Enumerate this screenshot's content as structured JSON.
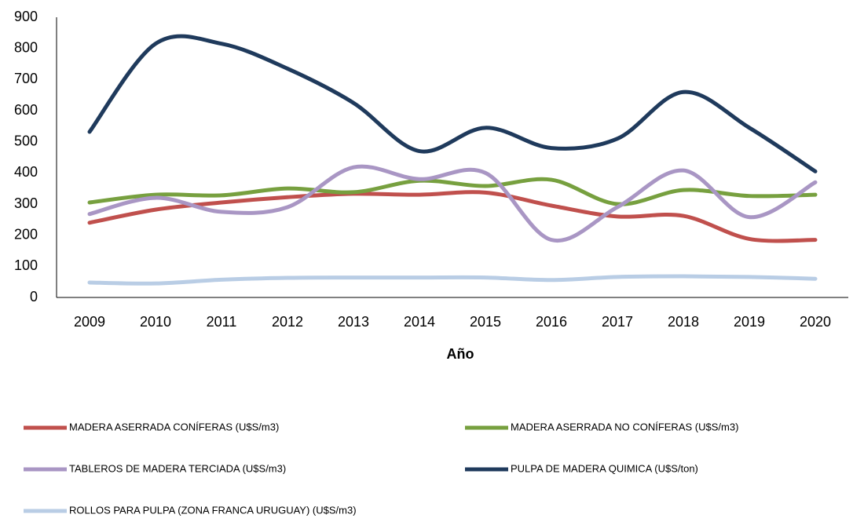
{
  "chart_data": {
    "type": "line",
    "x_label": "Año",
    "categories": [
      "2009",
      "2010",
      "2011",
      "2012",
      "2013",
      "2014",
      "2015",
      "2016",
      "2017",
      "2018",
      "2019",
      "2020"
    ],
    "series": [
      {
        "name": "MADERA ASERRADA CONÍFERAS (U$S/m3)",
        "color": "#c0504d",
        "values": [
          240,
          282,
          305,
          322,
          333,
          330,
          337,
          295,
          260,
          262,
          188,
          185
        ]
      },
      {
        "name": "MADERA ASERRADA NO CONÍFERAS (U$S/m3)",
        "color": "#77a03f",
        "values": [
          305,
          330,
          328,
          350,
          338,
          375,
          358,
          378,
          300,
          345,
          326,
          330
        ]
      },
      {
        "name": "TABLEROS DE MADERA TERCIADA (U$S/m3)",
        "color": "#a996c4",
        "values": [
          268,
          320,
          275,
          290,
          418,
          380,
          400,
          185,
          290,
          408,
          258,
          370
        ]
      },
      {
        "name": "PULPA DE MADERA QUIMICA (U$S/ton)",
        "color": "#1f3a5c",
        "values": [
          532,
          815,
          815,
          735,
          625,
          470,
          545,
          480,
          510,
          660,
          545,
          405
        ]
      },
      {
        "name": "ROLLOS PARA PULPA (ZONA FRANCA URUGUAY) (U$S/m3)",
        "color": "#b9cde5",
        "values": [
          48,
          45,
          57,
          63,
          64,
          64,
          64,
          56,
          66,
          68,
          66,
          60
        ]
      }
    ],
    "ylim": [
      0,
      900
    ],
    "yticks": [
      0,
      100,
      200,
      300,
      400,
      500,
      600,
      700,
      800,
      900
    ],
    "grid": false,
    "smooth": true,
    "legend": "bottom"
  }
}
